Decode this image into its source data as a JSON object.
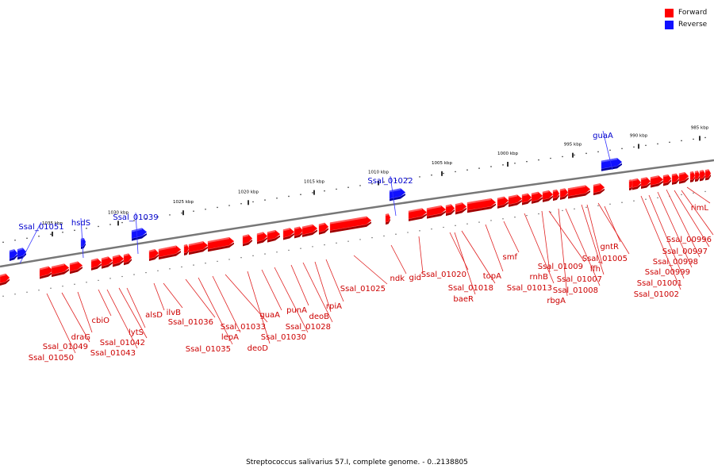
{
  "legend": {
    "items": [
      {
        "label": "Forward",
        "color": "#ff0000"
      },
      {
        "label": "Reverse",
        "color": "#0000ff"
      }
    ]
  },
  "caption": "Streptococcus salivarius 57.I, complete genome. - 0..2138805",
  "colors": {
    "forward": "#ff0000",
    "reverse": "#1010ff",
    "label_forward": "#cc0000",
    "label_reverse": "#0000cc",
    "backbone": "#777777"
  },
  "ticks": [
    "985 kbp",
    "990 kbp",
    "995 kbp",
    "1000 kbp",
    "1005 kbp",
    "1010 kbp",
    "1015 kbp",
    "1020 kbp",
    "1025 kbp",
    "1030 kbp",
    "1035 kbp"
  ],
  "genes_reverse": [
    "guaA",
    "Ssal_01022",
    "Ssal_01039",
    "hsdS",
    "Ssal_01051"
  ],
  "genes_forward": [
    "rimL",
    "Ssal_00996",
    "Ssal_00997",
    "Ssal_00998",
    "Ssal_00999",
    "Ssal_01001",
    "Ssal_01002",
    "gntR",
    "Ssal_01005",
    "ffh",
    "Ssal_01007",
    "Ssal_01008",
    "rbgA",
    "Ssal_01009",
    "rnhB",
    "Ssal_01013",
    "smf",
    "topA",
    "Ssal_01018",
    "baeR",
    "Ssal_01020",
    "gid",
    "ndk",
    "Ssal_01025",
    "rpiA",
    "deoB",
    "Ssal_01028",
    "punA",
    "Ssal_01030",
    "guaA",
    "deoD",
    "Ssal_01033",
    "lepA",
    "Ssal_01035",
    "Ssal_01036",
    "ilvB",
    "alsD",
    "lytS",
    "Ssal_01042",
    "Ssal_01043",
    "cbiO",
    "draG",
    "Ssal_01049",
    "Ssal_01050"
  ]
}
